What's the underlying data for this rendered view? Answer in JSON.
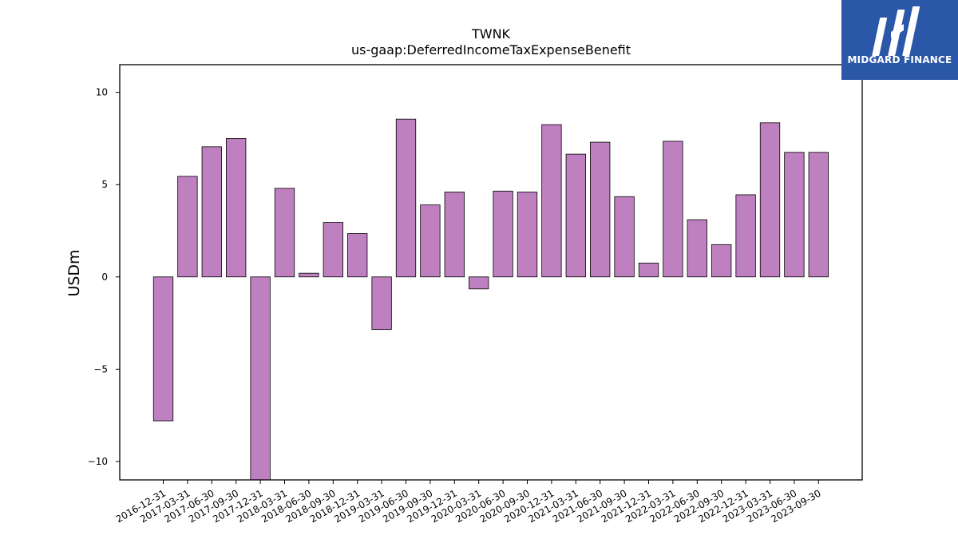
{
  "chart_data": {
    "type": "bar",
    "title": "TWNK",
    "subtitle": "us-gaap:DeferredIncomeTaxExpenseBenefit",
    "xlabel": "",
    "ylabel": "USDm",
    "ylim": [
      -11.0,
      11.5
    ],
    "yticks": [
      10,
      5,
      0,
      -5,
      -10
    ],
    "ytick_labels": [
      "10",
      "5",
      "0",
      "−5",
      "−10"
    ],
    "grid": false,
    "bar_color": "#bf80bf",
    "categories": [
      "2016-12-31",
      "2017-03-31",
      "2017-06-30",
      "2017-09-30",
      "2017-12-31",
      "2018-03-31",
      "2018-06-30",
      "2018-09-30",
      "2018-12-31",
      "2019-03-31",
      "2019-06-30",
      "2019-09-30",
      "2019-12-31",
      "2020-03-31",
      "2020-06-30",
      "2020-09-30",
      "2020-12-31",
      "2021-03-31",
      "2021-06-30",
      "2021-09-30",
      "2021-12-31",
      "2022-03-31",
      "2022-06-30",
      "2022-09-30",
      "2022-12-31",
      "2023-03-31",
      "2023-06-30",
      "2023-09-30"
    ],
    "values": [
      -7.8,
      5.45,
      7.05,
      7.5,
      -11.0,
      4.8,
      0.2,
      2.95,
      2.35,
      -2.85,
      8.55,
      3.9,
      4.6,
      -0.65,
      4.65,
      4.6,
      8.25,
      6.65,
      7.3,
      4.35,
      0.75,
      7.35,
      3.1,
      1.75,
      4.45,
      8.35,
      6.75,
      6.75
    ]
  },
  "logo": {
    "text": "MIDGARD FINANCE",
    "background": "#2b57a8"
  }
}
